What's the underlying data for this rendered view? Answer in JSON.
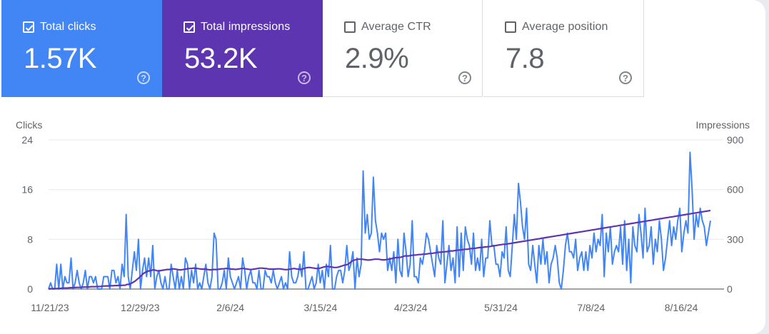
{
  "tiles": [
    {
      "label": "Total clicks",
      "value": "1.57K",
      "checked": true
    },
    {
      "label": "Total impressions",
      "value": "53.2K",
      "checked": true
    },
    {
      "label": "Average CTR",
      "value": "2.9%",
      "checked": false
    },
    {
      "label": "Average position",
      "value": "7.8",
      "checked": false
    }
  ],
  "help_glyph": "?",
  "colors": {
    "clicks": "#4285f4",
    "impressions": "#5e35b1"
  },
  "chart_data": {
    "type": "line",
    "left_axis": {
      "label": "Clicks",
      "ticks": [
        "0",
        "8",
        "16",
        "24"
      ],
      "range": [
        0,
        24
      ]
    },
    "right_axis": {
      "label": "Impressions",
      "ticks": [
        "0",
        "300",
        "600",
        "900"
      ],
      "range": [
        0,
        900
      ]
    },
    "x_tick_labels": [
      "11/21/23",
      "12/29/23",
      "2/6/24",
      "3/15/24",
      "4/23/24",
      "5/31/24",
      "7/8/24",
      "8/16/24"
    ],
    "series": [
      {
        "name": "Clicks",
        "axis": "left",
        "color": "#4285f4",
        "values": [
          0,
          1,
          0,
          0,
          4,
          0,
          4,
          0,
          2,
          1,
          1,
          5,
          0,
          1,
          3,
          1,
          0,
          1,
          3,
          0,
          2,
          2,
          1,
          2,
          0,
          0,
          0,
          2,
          2,
          2,
          0,
          3,
          3,
          1,
          2,
          0,
          4,
          2,
          12,
          2,
          0,
          3,
          6,
          3,
          8,
          0,
          3,
          5,
          2,
          5,
          2,
          7,
          0,
          2,
          3,
          1,
          0,
          2,
          0,
          0,
          4,
          2,
          0,
          3,
          0,
          2,
          0,
          5,
          4,
          0,
          3,
          1,
          4,
          0,
          1,
          0,
          2,
          4,
          1,
          0,
          2,
          9,
          8,
          0,
          0,
          1,
          3,
          0,
          5,
          2,
          1,
          0,
          1,
          2,
          0,
          5,
          3,
          0,
          2,
          3,
          1,
          1,
          0,
          3,
          0,
          0,
          3,
          2,
          2,
          1,
          3,
          1,
          0,
          1,
          2,
          0,
          1,
          0,
          6,
          2,
          1,
          1,
          2,
          4,
          2,
          6,
          0,
          0,
          1,
          2,
          0,
          1,
          4,
          1,
          3,
          0,
          4,
          2,
          7,
          0,
          0,
          2,
          3,
          3,
          1,
          3,
          7,
          3,
          4,
          6,
          0,
          5,
          2,
          4,
          19,
          9,
          12,
          8,
          9,
          18,
          11,
          9,
          6,
          9,
          8,
          9,
          3,
          5,
          3,
          6,
          1,
          8,
          3,
          2,
          9,
          6,
          2,
          4,
          11,
          2,
          2,
          1,
          5,
          4,
          6,
          9,
          8,
          6,
          4,
          2,
          7,
          5,
          4,
          11,
          1,
          4,
          7,
          3,
          5,
          1,
          10,
          2,
          9,
          3,
          10,
          8,
          7,
          4,
          9,
          3,
          5,
          3,
          8,
          2,
          5,
          5,
          11,
          7,
          7,
          4,
          4,
          2,
          6,
          5,
          10,
          3,
          2,
          7,
          12,
          8,
          17,
          14,
          10,
          8,
          13,
          4,
          3,
          7,
          4,
          1,
          7,
          4,
          8,
          4,
          6,
          1,
          4,
          5,
          7,
          5,
          1,
          0,
          3,
          7,
          9,
          6,
          6,
          5,
          8,
          3,
          5,
          6,
          3,
          6,
          3,
          7,
          5,
          9,
          6,
          8,
          7,
          12,
          2,
          9,
          6,
          10,
          4,
          6,
          7,
          6,
          10,
          4,
          11,
          3,
          8,
          1,
          10,
          7,
          6,
          12,
          9,
          5,
          13,
          6,
          7,
          10,
          4,
          8,
          6,
          11,
          8,
          3,
          5,
          8,
          11,
          7,
          10,
          8,
          11,
          13,
          6,
          9,
          11,
          9,
          22,
          16,
          8,
          12,
          10,
          13,
          11,
          10,
          7,
          9,
          11
        ]
      },
      {
        "name": "Impressions",
        "axis": "right",
        "color": "#5e35b1",
        "values": [
          0,
          2,
          2,
          3,
          3,
          4,
          4,
          6,
          6,
          6,
          7,
          8,
          8,
          9,
          10,
          10,
          10,
          11,
          12,
          12,
          12,
          14,
          14,
          14,
          15,
          15,
          16,
          18,
          18,
          19,
          19,
          20,
          20,
          21,
          21,
          22,
          22,
          23,
          23,
          28,
          28,
          34,
          40,
          48,
          58,
          68,
          80,
          92,
          100,
          106,
          110,
          112,
          116,
          114,
          110,
          110,
          112,
          114,
          116,
          118,
          118,
          120,
          122,
          120,
          118,
          116,
          116,
          118,
          120,
          122,
          124,
          124,
          126,
          125,
          124,
          122,
          120,
          120,
          120,
          118,
          116,
          116,
          118,
          118,
          118,
          120,
          122,
          122,
          124,
          124,
          122,
          120,
          120,
          118,
          120,
          122,
          124,
          124,
          122,
          120,
          118,
          118,
          120,
          122,
          124,
          126,
          126,
          125,
          124,
          122,
          120,
          120,
          120,
          121,
          122,
          122,
          120,
          118,
          117,
          118,
          120,
          122,
          124,
          122,
          120,
          118,
          120,
          124,
          128,
          130,
          130,
          128,
          126,
          124,
          124,
          126,
          130,
          134,
          136,
          136,
          134,
          132,
          130,
          130,
          132,
          136,
          140,
          144,
          146,
          150,
          160,
          170,
          175,
          178,
          180,
          180,
          180,
          178,
          176,
          175,
          176,
          178,
          180,
          180,
          180,
          178,
          176,
          176,
          178,
          180,
          182,
          185,
          188,
          190,
          190,
          192,
          195,
          200,
          200,
          200,
          202,
          204,
          205,
          206,
          208,
          208,
          210,
          210,
          212,
          214,
          215,
          216,
          218,
          220,
          222,
          222,
          224,
          225,
          226,
          228,
          230,
          230,
          232,
          234,
          235,
          236,
          238,
          240,
          240,
          242,
          244,
          245,
          246,
          248,
          250,
          250,
          252,
          254,
          255,
          256,
          258,
          260,
          262,
          264,
          266,
          268,
          270,
          270,
          272,
          274,
          276,
          278,
          280,
          282,
          284,
          286,
          288,
          290,
          292,
          294,
          296,
          298,
          300,
          302,
          304,
          306,
          308,
          310,
          312,
          314,
          316,
          318,
          320,
          322,
          324,
          326,
          328,
          330,
          332,
          334,
          336,
          338,
          340,
          342,
          344,
          346,
          348,
          350,
          352,
          354,
          356,
          358,
          360,
          362,
          364,
          366,
          368,
          370,
          372,
          374,
          376,
          378,
          380,
          382,
          384,
          386,
          388,
          390,
          392,
          394,
          396,
          398,
          400,
          402,
          404,
          406,
          408,
          410,
          412,
          414,
          416,
          418,
          420,
          422,
          424,
          426,
          428,
          430,
          432,
          434,
          436,
          438,
          440,
          442,
          444,
          446,
          448,
          450,
          452,
          454,
          456,
          458,
          460,
          462,
          464,
          466,
          468,
          470,
          472,
          474
        ]
      }
    ]
  }
}
